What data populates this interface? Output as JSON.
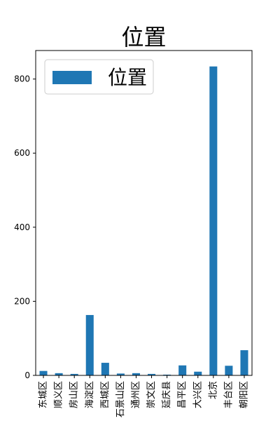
{
  "chart_data": {
    "type": "bar",
    "title": "位置",
    "xlabel": "",
    "ylabel": "",
    "categories": [
      "东城区",
      "顺义区",
      "房山区",
      "海淀区",
      "西城区",
      "石景山区",
      "通州区",
      "崇文区",
      "延庆县",
      "昌平区",
      "大兴区",
      "北京",
      "丰台区",
      "朝阳区"
    ],
    "series": [
      {
        "name": "位置",
        "values": [
          12,
          6,
          4,
          163,
          34,
          5,
          6,
          4,
          2,
          27,
          10,
          834,
          26,
          68
        ],
        "color": "#1f77b4"
      }
    ],
    "ylim": [
      0,
      877
    ],
    "yticks": [
      0,
      200,
      400,
      600,
      800
    ],
    "legend_position": "top-left",
    "grid": false
  }
}
